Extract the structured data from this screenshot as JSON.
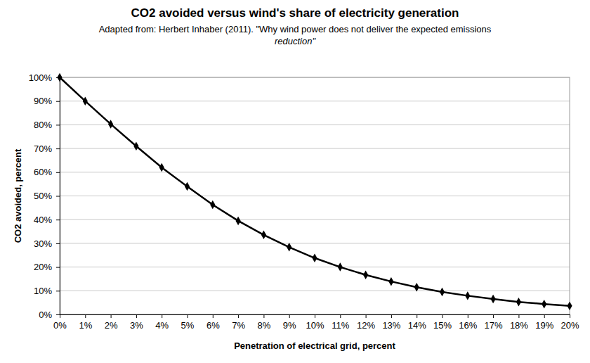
{
  "chart_data": {
    "type": "line",
    "title": "CO2 avoided versus wind's share of electricity generation",
    "subtitle": [
      "Adapted from: Herbert Inhaber (2011). \"Why wind power does not deliver the expected emissions",
      "reduction\""
    ],
    "x_label": "Penetration of electrical grid, percent",
    "y_label": "CO2 avoided, percent",
    "x": [
      0,
      1,
      2,
      3,
      4,
      5,
      6,
      7,
      8,
      9,
      10,
      11,
      12,
      13,
      14,
      15,
      16,
      17,
      18,
      19,
      20
    ],
    "values": [
      100,
      90,
      80.3,
      71,
      62,
      54,
      46.3,
      39.5,
      33.6,
      28.4,
      23.8,
      20,
      16.7,
      13.9,
      11.5,
      9.5,
      7.9,
      6.5,
      5.3,
      4.4,
      3.6
    ],
    "color": "#000000",
    "marker": "diamond",
    "grid": true,
    "xlim": [
      0,
      20
    ],
    "ylim": [
      0,
      100
    ],
    "xticks": [
      {
        "value": 0,
        "label": "0%"
      },
      {
        "value": 1,
        "label": "1%"
      },
      {
        "value": 2,
        "label": "2%"
      },
      {
        "value": 3,
        "label": "3%"
      },
      {
        "value": 4,
        "label": "4%"
      },
      {
        "value": 5,
        "label": "5%"
      },
      {
        "value": 6,
        "label": "6%"
      },
      {
        "value": 7,
        "label": "7%"
      },
      {
        "value": 8,
        "label": "8%"
      },
      {
        "value": 9,
        "label": "9%"
      },
      {
        "value": 10,
        "label": "10%"
      },
      {
        "value": 11,
        "label": "11%"
      },
      {
        "value": 12,
        "label": "12%"
      },
      {
        "value": 13,
        "label": "13%"
      },
      {
        "value": 14,
        "label": "14%"
      },
      {
        "value": 15,
        "label": "15%"
      },
      {
        "value": 16,
        "label": "16%"
      },
      {
        "value": 17,
        "label": "17%"
      },
      {
        "value": 18,
        "label": "18%"
      },
      {
        "value": 19,
        "label": "19%"
      },
      {
        "value": 20,
        "label": "20%"
      }
    ],
    "yticks": [
      {
        "value": 0,
        "label": "0%"
      },
      {
        "value": 10,
        "label": "10%"
      },
      {
        "value": 20,
        "label": "20%"
      },
      {
        "value": 30,
        "label": "30%"
      },
      {
        "value": 40,
        "label": "40%"
      },
      {
        "value": 50,
        "label": "50%"
      },
      {
        "value": 60,
        "label": "60%"
      },
      {
        "value": 70,
        "label": "70%"
      },
      {
        "value": 80,
        "label": "80%"
      },
      {
        "value": 90,
        "label": "90%"
      },
      {
        "value": 100,
        "label": "100%"
      }
    ]
  }
}
